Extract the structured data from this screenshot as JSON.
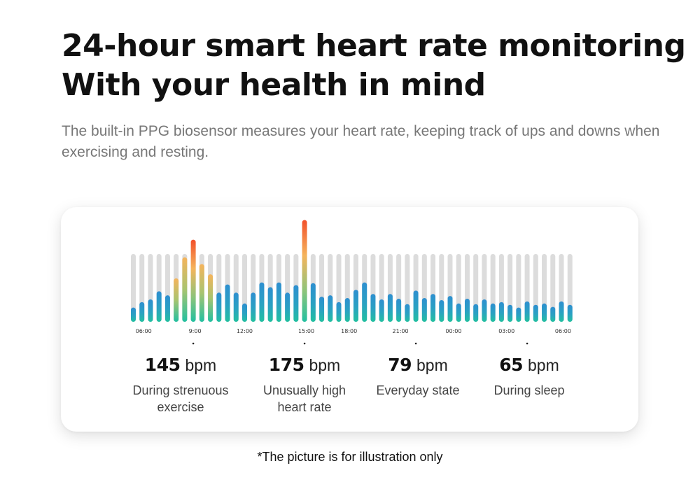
{
  "header": {
    "title_line1": "24-hour smart heart rate monitoring",
    "title_line2": "With your health in mind",
    "subtitle": "The built-in PPG biosensor measures your heart rate, keeping track of ups and downs when exercising and resting."
  },
  "chart_data": {
    "type": "bar",
    "title": "",
    "xlabel": "",
    "ylabel": "",
    "description": "52 heart-rate bars across 24 hours; values are fill level relative to the gray track (1.0 = full track)",
    "x_tick_labels": [
      "06:00",
      "9:00",
      "12:00",
      "15:00",
      "18:00",
      "21:00",
      "00:00",
      "03:00",
      "06:00"
    ],
    "x_tick_bar_index": [
      1.2,
      7.2,
      13,
      20.2,
      25.2,
      31.2,
      37.4,
      43.6,
      50.2
    ],
    "values": [
      0.21,
      0.29,
      0.33,
      0.45,
      0.39,
      0.64,
      0.95,
      1.21,
      0.85,
      0.7,
      0.43,
      0.55,
      0.43,
      0.27,
      0.43,
      0.58,
      0.51,
      0.58,
      0.43,
      0.54,
      1.5,
      0.57,
      0.37,
      0.39,
      0.29,
      0.35,
      0.47,
      0.58,
      0.41,
      0.33,
      0.41,
      0.34,
      0.26,
      0.46,
      0.35,
      0.41,
      0.32,
      0.38,
      0.27,
      0.34,
      0.26,
      0.33,
      0.27,
      0.29,
      0.25,
      0.21,
      0.3,
      0.25,
      0.27,
      0.22,
      0.3,
      0.25
    ],
    "highlight_type": [
      "normal",
      "normal",
      "normal",
      "normal",
      "normal",
      "hot",
      "hot",
      "hot",
      "hot",
      "hot",
      "normal",
      "normal",
      "normal",
      "normal",
      "normal",
      "normal",
      "normal",
      "normal",
      "normal",
      "normal",
      "hot",
      "normal",
      "normal",
      "normal",
      "normal",
      "normal",
      "normal",
      "normal",
      "normal",
      "normal",
      "normal",
      "normal",
      "normal",
      "normal",
      "normal",
      "normal",
      "normal",
      "normal",
      "normal",
      "normal",
      "normal",
      "normal",
      "normal",
      "normal",
      "normal",
      "normal",
      "normal",
      "normal",
      "normal",
      "normal",
      "normal",
      "normal"
    ],
    "marker_bar_index": [
      7,
      20,
      33,
      46
    ],
    "ylim": [
      0,
      1.5
    ],
    "grid": false,
    "legend": "none",
    "colors": {
      "track": "#dcdcdc",
      "normal_top": "#2e8fd0",
      "normal_bottom": "#22c0a0",
      "hot_top": "#f2502a",
      "hot_mid": "#f5b45c",
      "hot_bottom": "#22c0a0",
      "tick_text": "#333333",
      "marker": "#222222"
    }
  },
  "stats": [
    {
      "value": "145",
      "unit": "bpm",
      "description_line1": "During strenuous",
      "description_line2": "exercise"
    },
    {
      "value": "175",
      "unit": "bpm",
      "description_line1": "Unusually high",
      "description_line2": "heart rate"
    },
    {
      "value": "79",
      "unit": "bpm",
      "description_line1": "Everyday state",
      "description_line2": ""
    },
    {
      "value": "65",
      "unit": "bpm",
      "description_line1": "During sleep",
      "description_line2": ""
    }
  ],
  "footnote": "*The picture is for illustration only"
}
